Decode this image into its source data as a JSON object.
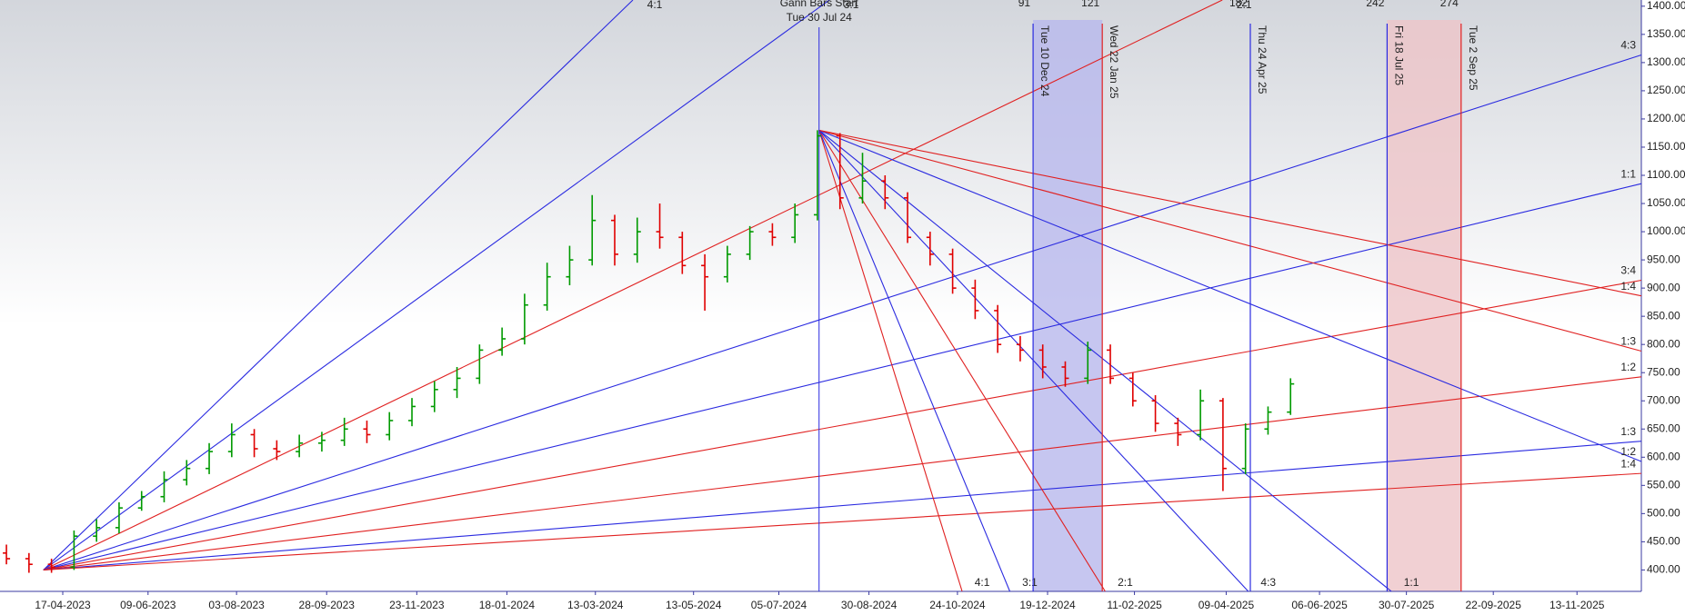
{
  "chart_data": {
    "type": "ohlc",
    "xlim": [
      "09-03-2023",
      "23-12-2025"
    ],
    "ylim": [
      362,
      1411
    ],
    "xticks": [
      "17-04-2023",
      "09-06-2023",
      "03-08-2023",
      "28-09-2023",
      "23-11-2023",
      "18-01-2024",
      "13-03-2024",
      "13-05-2024",
      "05-07-2024",
      "30-08-2024",
      "24-10-2024",
      "19-12-2024",
      "11-02-2025",
      "09-04-2025",
      "06-06-2025",
      "30-07-2025",
      "22-09-2025",
      "13-11-2025"
    ],
    "yticks": [
      {
        "value": 400,
        "label": "400.00"
      },
      {
        "value": 450,
        "label": "450.00"
      },
      {
        "value": 500,
        "label": "500.00"
      },
      {
        "value": 550,
        "label": "550.00"
      },
      {
        "value": 600,
        "label": "600.00"
      },
      {
        "value": 650,
        "label": "650.00"
      },
      {
        "value": 700,
        "label": "700.00"
      },
      {
        "value": 750,
        "label": "750.00"
      },
      {
        "value": 800,
        "label": "800.00"
      },
      {
        "value": 850,
        "label": "850.00"
      },
      {
        "value": 900,
        "label": "900.00"
      },
      {
        "value": 950,
        "label": "950.00"
      },
      {
        "value": 1000,
        "label": "1000.00"
      },
      {
        "value": 1050,
        "label": "1050.00"
      },
      {
        "value": 1100,
        "label": "1100.00"
      },
      {
        "value": 1150,
        "label": "1150.00"
      },
      {
        "value": 1200,
        "label": "1200.00"
      },
      {
        "value": 1250,
        "label": "1250.00"
      },
      {
        "value": 1300,
        "label": "1300.00"
      },
      {
        "value": 1350,
        "label": "1350.00"
      },
      {
        "value": 1400,
        "label": "1400.00"
      }
    ],
    "up_color": "#009a00",
    "down_color": "#e00000",
    "x": [
      "13-03-2023",
      "27-03-2023",
      "10-04-2023",
      "24-04-2023",
      "08-05-2023",
      "22-05-2023",
      "05-06-2023",
      "19-06-2023",
      "03-07-2023",
      "17-07-2023",
      "31-07-2023",
      "14-08-2023",
      "28-08-2023",
      "11-09-2023",
      "25-09-2023",
      "09-10-2023",
      "23-10-2023",
      "06-11-2023",
      "20-11-2023",
      "04-12-2023",
      "18-12-2023",
      "01-01-2024",
      "15-01-2024",
      "29-01-2024",
      "12-02-2024",
      "26-02-2024",
      "11-03-2024",
      "25-03-2024",
      "08-04-2024",
      "22-04-2024",
      "06-05-2024",
      "20-05-2024",
      "03-06-2024",
      "17-06-2024",
      "01-07-2024",
      "15-07-2024",
      "29-07-2024",
      "12-08-2024",
      "26-08-2024",
      "09-09-2024",
      "23-09-2024",
      "07-10-2024",
      "21-10-2024",
      "04-11-2024",
      "18-11-2024",
      "02-12-2024",
      "16-12-2024",
      "30-12-2024",
      "13-01-2025",
      "27-01-2025",
      "10-02-2025",
      "24-02-2025",
      "10-03-2025",
      "24-03-2025",
      "07-04-2025",
      "21-04-2025",
      "05-05-2025",
      "19-05-2025"
    ],
    "open": [
      430,
      420,
      410,
      405,
      460,
      475,
      510,
      530,
      560,
      580,
      610,
      640,
      615,
      610,
      625,
      630,
      650,
      640,
      665,
      690,
      720,
      740,
      790,
      810,
      870,
      920,
      950,
      1020,
      960,
      1000,
      990,
      940,
      920,
      960,
      1000,
      990,
      1030,
      1170,
      1060,
      1090,
      1060,
      990,
      960,
      900,
      860,
      800,
      790,
      760,
      740,
      790,
      740,
      700,
      660,
      640,
      700,
      580,
      650,
      680
    ],
    "high": [
      445,
      430,
      420,
      470,
      490,
      520,
      540,
      575,
      595,
      625,
      660,
      650,
      630,
      640,
      645,
      670,
      665,
      680,
      705,
      735,
      760,
      800,
      830,
      890,
      945,
      975,
      1065,
      1030,
      1025,
      1050,
      1000,
      960,
      975,
      1010,
      1015,
      1050,
      1180,
      1175,
      1140,
      1100,
      1070,
      1000,
      970,
      915,
      870,
      815,
      800,
      770,
      805,
      800,
      750,
      710,
      670,
      720,
      705,
      660,
      690,
      740
    ],
    "low": [
      410,
      395,
      395,
      400,
      450,
      465,
      505,
      520,
      550,
      570,
      600,
      600,
      595,
      600,
      610,
      620,
      625,
      630,
      655,
      680,
      705,
      730,
      780,
      800,
      860,
      905,
      940,
      940,
      945,
      970,
      925,
      860,
      910,
      950,
      975,
      980,
      1020,
      1040,
      1050,
      1040,
      980,
      940,
      890,
      845,
      785,
      770,
      740,
      725,
      730,
      730,
      690,
      645,
      620,
      630,
      540,
      570,
      640,
      675
    ],
    "close": [
      420,
      410,
      405,
      460,
      475,
      510,
      530,
      560,
      580,
      610,
      640,
      615,
      610,
      625,
      630,
      650,
      640,
      665,
      690,
      720,
      740,
      790,
      810,
      870,
      920,
      950,
      1020,
      960,
      1000,
      990,
      940,
      920,
      960,
      1000,
      990,
      1030,
      1170,
      1060,
      1090,
      1060,
      990,
      960,
      900,
      860,
      800,
      790,
      760,
      740,
      790,
      740,
      700,
      660,
      640,
      700,
      580,
      650,
      680,
      730
    ],
    "fans": [
      {
        "origin": {
          "date": "05-04-2023",
          "price": 400
        },
        "direction": "up",
        "unit": 0.69,
        "lines": [
          {
            "ratio": "4:1",
            "color": "#2a2ae0"
          },
          {
            "ratio": "3:1",
            "color": "#2a2ae0"
          },
          {
            "ratio": "2:1",
            "color": "#e02020"
          },
          {
            "ratio": "4:3",
            "color": "#2a2ae0"
          },
          {
            "ratio": "1:1",
            "color": "#2a2ae0"
          },
          {
            "ratio": "3:4",
            "color": "#e02020"
          },
          {
            "ratio": "1:2",
            "color": "#e02020"
          },
          {
            "ratio": "1:3",
            "color": "#2a2ae0"
          },
          {
            "ratio": "1:4",
            "color": "#e02020"
          }
        ]
      },
      {
        "origin": {
          "date": "30-07-2024",
          "price": 1180
        },
        "direction": "down",
        "unit": 2.3,
        "lines": [
          {
            "ratio": "4:1",
            "color": "#e02020"
          },
          {
            "ratio": "3:1",
            "color": "#2a2ae0"
          },
          {
            "ratio": "2:1",
            "color": "#e02020"
          },
          {
            "ratio": "4:3",
            "color": "#2a2ae0"
          },
          {
            "ratio": "1:1",
            "color": "#2a2ae0"
          },
          {
            "ratio": "1:2",
            "color": "#2a2ae0"
          },
          {
            "ratio": "1:3",
            "color": "#e02020"
          },
          {
            "ratio": "1:4",
            "color": "#e02020"
          }
        ]
      }
    ],
    "start": {
      "date": "30-07-2024",
      "label": "Gann Bars Start",
      "sublabel": "Tue 30 Jul 24",
      "color": "#2a2ae0"
    },
    "cycles": [
      {
        "date": "10-12-2024",
        "label": "Tue 10 Dec 24",
        "count": 91,
        "color": "#2a2ae0"
      },
      {
        "date": "22-01-2025",
        "label": "Wed 22 Jan 25",
        "count": 121,
        "color": "#e02020"
      },
      {
        "date": "24-04-2025",
        "label": "Thu 24 Apr 25",
        "count": 182,
        "color": "#2a2ae0"
      },
      {
        "date": "18-07-2025",
        "label": "Fri 18 Jul 25",
        "count": 242,
        "color": "#2a2ae0"
      },
      {
        "date": "02-09-2025",
        "label": "Tue 2 Sep 25",
        "count": 274,
        "color": "#e02020"
      }
    ],
    "bands": [
      {
        "from": "10-12-2024",
        "to": "22-01-2025",
        "color": "#b8b8ec"
      },
      {
        "from": "18-07-2025",
        "to": "02-09-2025",
        "color": "#eec4c8"
      }
    ]
  }
}
